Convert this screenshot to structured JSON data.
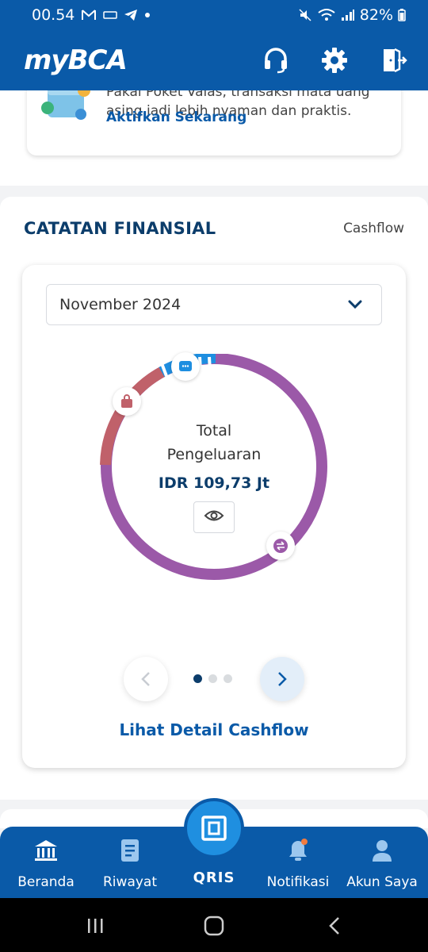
{
  "status": {
    "time": "00.54",
    "battery": "82%"
  },
  "header": {
    "logo_prefix": "my",
    "logo_brand": "BCA"
  },
  "promo": {
    "text": "Pakai Poket Valas, transaksi mata uang asing jadi lebih nyaman dan praktis.",
    "link": "Aktifkan Sekarang"
  },
  "section": {
    "title": "CATATAN FINANSIAL",
    "link": "Cashflow"
  },
  "dropdown": {
    "value": "November 2024"
  },
  "donut": {
    "label_line1": "Total",
    "label_line2": "Pengeluaran",
    "amount": "IDR 109,73 Jt",
    "segments": [
      {
        "name": "transfer",
        "share": 0.76,
        "color": "#9b59a8"
      },
      {
        "name": "shopping",
        "share": 0.1,
        "color": "#c0616a"
      },
      {
        "name": "others",
        "share": 0.1,
        "color": "#1e8ee0"
      }
    ]
  },
  "pager": {
    "pages": 3,
    "active": 1
  },
  "detail_link": "Lihat Detail Cashflow",
  "nav": {
    "items": [
      {
        "label": "Beranda"
      },
      {
        "label": "Riwayat"
      },
      {
        "label": "QRIS"
      },
      {
        "label": "Notifikasi"
      },
      {
        "label": "Akun Saya"
      }
    ]
  },
  "colors": {
    "primary": "#0a5aa8",
    "title": "#0c3d6b"
  }
}
